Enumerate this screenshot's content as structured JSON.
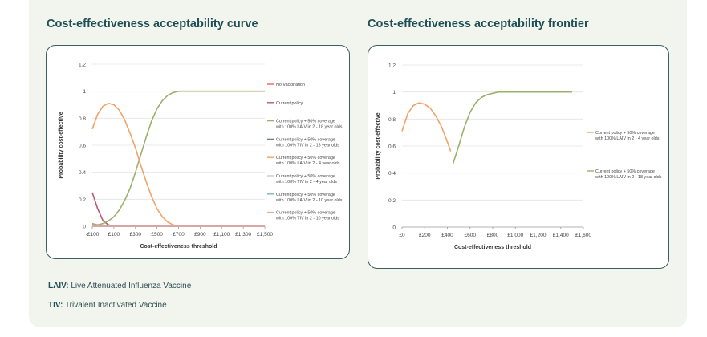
{
  "colors": {
    "bg": "#f2f5ee",
    "title": "#1f4f55",
    "panel_border": "#3a5e63",
    "grid": "#e4e4e4"
  },
  "glossary": [
    {
      "abbr": "LAIV:",
      "text": " Live Attenuated Influenza Vaccine"
    },
    {
      "abbr": "TIV:",
      "text": " Trivalent Inactivated Vaccine"
    }
  ],
  "chart_data": [
    {
      "type": "line",
      "title": "Cost-effectiveness acceptability curve",
      "xlabel": "Cost-effectiveness threshold",
      "ylabel": "Probability cost-effective",
      "xlim": [
        -100,
        1500
      ],
      "ylim": [
        0,
        1.2
      ],
      "xticks": [
        "-£100",
        "£100",
        "£300",
        "£500",
        "£700",
        "£900",
        "£1,100",
        "£1,300",
        "£1,500"
      ],
      "yticks": [
        "0",
        "0.2",
        "0.4",
        "0.6",
        "0.8",
        "1",
        "1.2"
      ],
      "grid": true,
      "legend_position": "right",
      "x": [
        -100,
        -50,
        0,
        50,
        100,
        150,
        200,
        250,
        300,
        350,
        400,
        450,
        500,
        550,
        600,
        650,
        700,
        750,
        800,
        850,
        900,
        950,
        1000,
        1050,
        1100,
        1150,
        1200,
        1250,
        1300,
        1350,
        1400,
        1450,
        1500
      ],
      "series": [
        {
          "name": "No Vaccination",
          "color": "#e8675a",
          "values": [
            0.01,
            0,
            0,
            0,
            0,
            0,
            0,
            0,
            0,
            0,
            0,
            0,
            0,
            0,
            0,
            0,
            0,
            0,
            0,
            0,
            0,
            0,
            0,
            0,
            0,
            0,
            0,
            0,
            0,
            0,
            0,
            0,
            0
          ]
        },
        {
          "name": "Current policy",
          "color": "#b55a7a",
          "values": [
            0.25,
            0.13,
            0.04,
            0.01,
            0,
            0,
            0,
            0,
            0,
            0,
            0,
            0,
            0,
            0,
            0,
            0,
            0,
            0,
            0,
            0,
            0,
            0,
            0,
            0,
            0,
            0,
            0,
            0,
            0,
            0,
            0,
            0,
            0
          ]
        },
        {
          "name": "Current policy + 50% coverage with 100% LAIV in 2 - 18 year olds",
          "color": "#9bb06b",
          "values": [
            0.02,
            0.01,
            0.02,
            0.04,
            0.07,
            0.12,
            0.19,
            0.28,
            0.4,
            0.53,
            0.66,
            0.78,
            0.87,
            0.93,
            0.97,
            0.99,
            1,
            1,
            1,
            1,
            1,
            1,
            1,
            1,
            1,
            1,
            1,
            1,
            1,
            1,
            1,
            1,
            1
          ]
        },
        {
          "name": "Current policy + 50% coverage with 100% TIV in 2 - 18 year olds",
          "color": "#6f7f86",
          "values": [
            0,
            0,
            0,
            0,
            0,
            0,
            0,
            0,
            0,
            0,
            0,
            0,
            0,
            0,
            0,
            0,
            0,
            0,
            0,
            0,
            0,
            0,
            0,
            0,
            0,
            0,
            0,
            0,
            0,
            0,
            0,
            0,
            0
          ]
        },
        {
          "name": "Current policy + 50% coverage with 100% LAIV in 2 - 4 year olds",
          "color": "#f0a36a",
          "values": [
            0.72,
            0.83,
            0.89,
            0.91,
            0.9,
            0.86,
            0.79,
            0.69,
            0.58,
            0.45,
            0.33,
            0.22,
            0.13,
            0.07,
            0.03,
            0.01,
            0,
            0,
            0,
            0,
            0,
            0,
            0,
            0,
            0,
            0,
            0,
            0,
            0,
            0,
            0,
            0,
            0
          ]
        },
        {
          "name": "Current policy + 50% coverage with 100% TIV in 2 - 4 year olds",
          "color": "#c9c9c9",
          "values": [
            0,
            0,
            0,
            0,
            0,
            0,
            0,
            0,
            0,
            0,
            0,
            0,
            0,
            0,
            0,
            0,
            0,
            0,
            0,
            0,
            0,
            0,
            0,
            0,
            0,
            0,
            0,
            0,
            0,
            0,
            0,
            0,
            0
          ]
        },
        {
          "name": "Current policy + 50% coverage with 100% LAIV in 2 - 10 year olds",
          "color": "#7fb5ad",
          "values": [
            0,
            0,
            0,
            0,
            0,
            0,
            0,
            0,
            0,
            0,
            0,
            0,
            0,
            0,
            0,
            0,
            0,
            0,
            0,
            0,
            0,
            0,
            0,
            0,
            0,
            0,
            0,
            0,
            0,
            0,
            0,
            0,
            0
          ]
        },
        {
          "name": "Current policy + 50% coverage with 100% TIV in 2 - 10 year olds",
          "color": "#eaa3a3",
          "values": [
            0,
            0,
            0,
            0,
            0,
            0,
            0,
            0,
            0,
            0,
            0,
            0,
            0,
            0,
            0,
            0,
            0,
            0,
            0,
            0,
            0,
            0,
            0,
            0,
            0,
            0,
            0,
            0,
            0,
            0,
            0,
            0,
            0
          ]
        }
      ]
    },
    {
      "type": "line",
      "title": "Cost-effectiveness acceptability frontier",
      "xlabel": "Cost-effectiveness threshold",
      "ylabel": "Probability cost-effective",
      "xlim": [
        0,
        1600
      ],
      "ylim": [
        0,
        1.2
      ],
      "xticks": [
        "£0",
        "£200",
        "£400",
        "£600",
        "£800",
        "£1,000",
        "£1,200",
        "£1,400",
        "£1,600"
      ],
      "yticks": [
        "0",
        "0.2",
        "0.4",
        "0.6",
        "0.8",
        "1",
        "1.2"
      ],
      "grid": true,
      "legend_position": "right",
      "series": [
        {
          "name": "Current policy + 50% coverage with 100% LAIV in 2 - 4 year olds",
          "color": "#f0a36a",
          "x": [
            0,
            50,
            100,
            150,
            200,
            250,
            300,
            350,
            400,
            430
          ],
          "values": [
            0.71,
            0.84,
            0.9,
            0.92,
            0.91,
            0.88,
            0.82,
            0.74,
            0.63,
            0.56
          ]
        },
        {
          "name": "Current policy + 50% coverage with 100% LAIV in 2 - 18 year olds",
          "color": "#9bb06b",
          "x": [
            450,
            500,
            550,
            600,
            650,
            700,
            750,
            800,
            850,
            900,
            1000,
            1100,
            1200,
            1300,
            1400,
            1500
          ],
          "values": [
            0.47,
            0.6,
            0.74,
            0.85,
            0.92,
            0.96,
            0.98,
            0.99,
            1,
            1,
            1,
            1,
            1,
            1,
            1,
            1
          ]
        }
      ]
    }
  ]
}
